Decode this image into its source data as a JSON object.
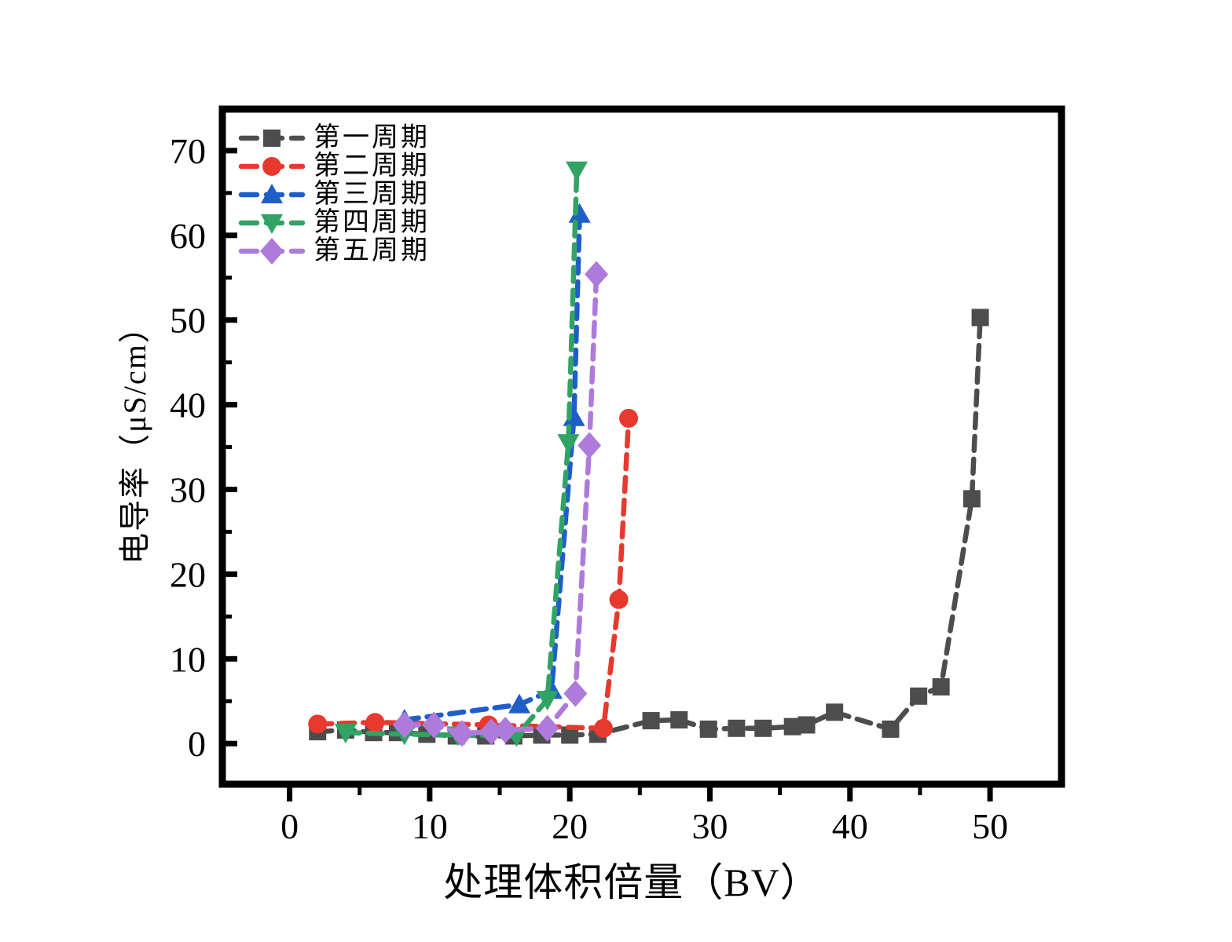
{
  "chart_data": {
    "type": "line",
    "title": "",
    "xlabel": "处理体积倍量（BV）",
    "ylabel": "电导率（μS/cm）",
    "xlim": [
      -4.8,
      55.1
    ],
    "ylim": [
      -4.8,
      74.9
    ],
    "xticks": [
      0,
      10,
      20,
      30,
      40,
      50
    ],
    "yticks": [
      0,
      10,
      20,
      30,
      40,
      50,
      60,
      70
    ],
    "x_minor_ticks": [
      5,
      15,
      25,
      35,
      45
    ],
    "y_minor_ticks": [
      5,
      15,
      25,
      35,
      45,
      55,
      65
    ],
    "grid": false,
    "legend_position": "upper-left-inside",
    "tick_style": {
      "x": "out",
      "y": "in"
    },
    "line_style": "dashed",
    "axis_color": "#000000",
    "series": [
      {
        "name": "第一周期",
        "color": "#4d4d4d",
        "marker": "square",
        "data": [
          [
            2,
            1.4
          ],
          [
            4,
            1.6
          ],
          [
            6,
            1.3
          ],
          [
            7.7,
            1.3
          ],
          [
            9.8,
            1.1
          ],
          [
            11.9,
            0.9
          ],
          [
            14,
            0.9
          ],
          [
            16,
            0.9
          ],
          [
            18,
            1.0
          ],
          [
            20,
            1.0
          ],
          [
            22,
            1.1
          ],
          [
            25.8,
            2.7
          ],
          [
            27.8,
            2.8
          ],
          [
            29.9,
            1.7
          ],
          [
            31.9,
            1.8
          ],
          [
            33.8,
            1.8
          ],
          [
            35.9,
            2.0
          ],
          [
            36.9,
            2.2
          ],
          [
            38.9,
            3.7
          ],
          [
            42.9,
            1.7
          ],
          [
            44.9,
            5.6
          ],
          [
            46.5,
            6.7
          ],
          [
            48.7,
            28.9
          ],
          [
            49.3,
            50.3
          ]
        ]
      },
      {
        "name": "第二周期",
        "color": "#e8392e",
        "marker": "circle",
        "data": [
          [
            2,
            2.3
          ],
          [
            6.1,
            2.5
          ],
          [
            14.2,
            2.2
          ],
          [
            22.4,
            1.8
          ],
          [
            23.5,
            17.0
          ],
          [
            24.2,
            38.4
          ]
        ]
      },
      {
        "name": "第三周期",
        "color": "#1f5ec9",
        "marker": "triangle-up",
        "data": [
          [
            8.2,
            2.8
          ],
          [
            16.4,
            4.6
          ],
          [
            18.7,
            6.3
          ],
          [
            20.3,
            38.5
          ],
          [
            20.7,
            62.5
          ]
        ]
      },
      {
        "name": "第四周期",
        "color": "#31a364",
        "marker": "triangle-down",
        "data": [
          [
            4,
            1.3
          ],
          [
            8.2,
            1.1
          ],
          [
            12,
            1.0
          ],
          [
            16.2,
            0.9
          ],
          [
            18.4,
            5.2
          ],
          [
            19.9,
            35.5
          ],
          [
            20.5,
            67.7
          ]
        ]
      },
      {
        "name": "第五周期",
        "color": "#ae7bdc",
        "marker": "diamond",
        "data": [
          [
            8.2,
            2.2
          ],
          [
            10.3,
            2.2
          ],
          [
            12.3,
            1.2
          ],
          [
            14.4,
            1.4
          ],
          [
            15.4,
            1.6
          ],
          [
            18.4,
            1.8
          ],
          [
            20.4,
            5.9
          ],
          [
            21.4,
            35.2
          ],
          [
            21.9,
            55.4
          ]
        ]
      }
    ]
  }
}
